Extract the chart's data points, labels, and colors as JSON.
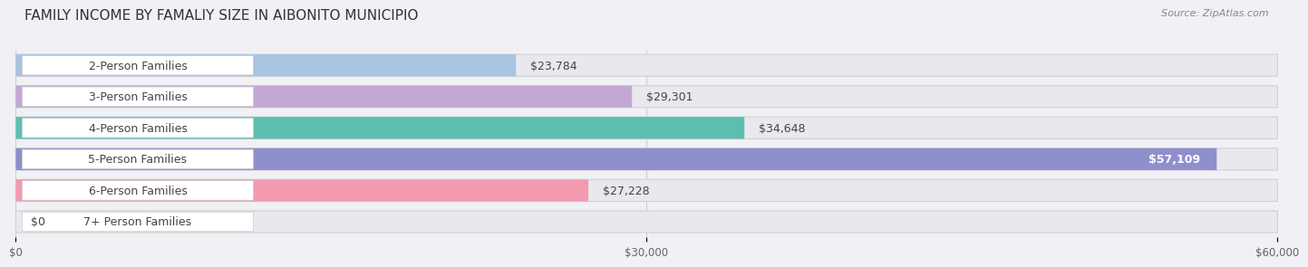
{
  "title": "FAMILY INCOME BY FAMALIY SIZE IN AIBONITO MUNICIPIO",
  "source": "Source: ZipAtlas.com",
  "categories": [
    "2-Person Families",
    "3-Person Families",
    "4-Person Families",
    "5-Person Families",
    "6-Person Families",
    "7+ Person Families"
  ],
  "values": [
    23784,
    29301,
    34648,
    57109,
    27228,
    0
  ],
  "bar_colors": [
    "#a8c4e0",
    "#c4a8d4",
    "#5bbfb0",
    "#8f8fcc",
    "#f49ab0",
    "#f0cfa0"
  ],
  "xlim": [
    0,
    60000
  ],
  "xticks": [
    0,
    30000,
    60000
  ],
  "xtick_labels": [
    "$0",
    "$30,000",
    "$60,000"
  ],
  "value_labels": [
    "$23,784",
    "$29,301",
    "$34,648",
    "$57,109",
    "$27,228",
    "$0"
  ],
  "label_inside": [
    false,
    false,
    false,
    true,
    false,
    false
  ],
  "title_fontsize": 11,
  "source_fontsize": 8,
  "bar_label_fontsize": 9,
  "category_fontsize": 9,
  "background_color": "#f0f0f5",
  "bar_bg_color": "#e8e8ee",
  "label_box_color": "#ffffff"
}
